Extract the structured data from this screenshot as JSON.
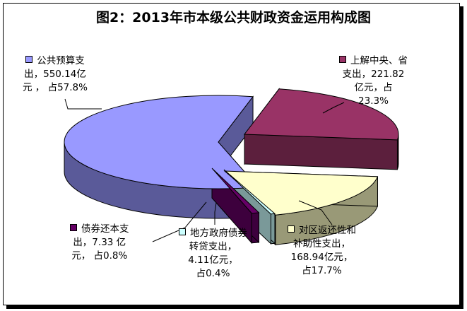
{
  "chart_data": {
    "type": "pie",
    "title": "图2：2013年市本级公共财政资金运用构成图",
    "slices": [
      {
        "id": "gonggong",
        "name": "公共预算支出",
        "value": 550.14,
        "percent": 57.8,
        "color": "#9999FF",
        "lines": [
          "公共预算支",
          "出，550.14亿",
          "元 ，  占57.8%"
        ]
      },
      {
        "id": "shangjie",
        "name": "上解中央、省支出",
        "value": 221.82,
        "percent": 23.3,
        "color": "#993366",
        "lines": [
          "上解中央、省",
          "支出，221.82",
          "亿元，占",
          "23.3%"
        ]
      },
      {
        "id": "fanhuan",
        "name": "对区返还性和补助性支出",
        "value": 168.94,
        "percent": 17.7,
        "color": "#FFFFCC",
        "lines": [
          "对区返还性和",
          "补助性支出，",
          "168.94亿元，",
          "占17.7%"
        ]
      },
      {
        "id": "zhaiquan",
        "name": "地方政府债券转贷支出",
        "value": 4.11,
        "percent": 0.4,
        "color": "#CCFFFF",
        "lines": [
          "地方政府债券",
          "转贷支出，",
          "4.11亿元，",
          "占0.4%"
        ]
      },
      {
        "id": "huanben",
        "name": "债券还本支出",
        "value": 7.33,
        "percent": 0.8,
        "color": "#660066",
        "lines": [
          "债券还本支",
          "出，7.33 亿",
          "元，  占0.8%"
        ]
      }
    ]
  }
}
